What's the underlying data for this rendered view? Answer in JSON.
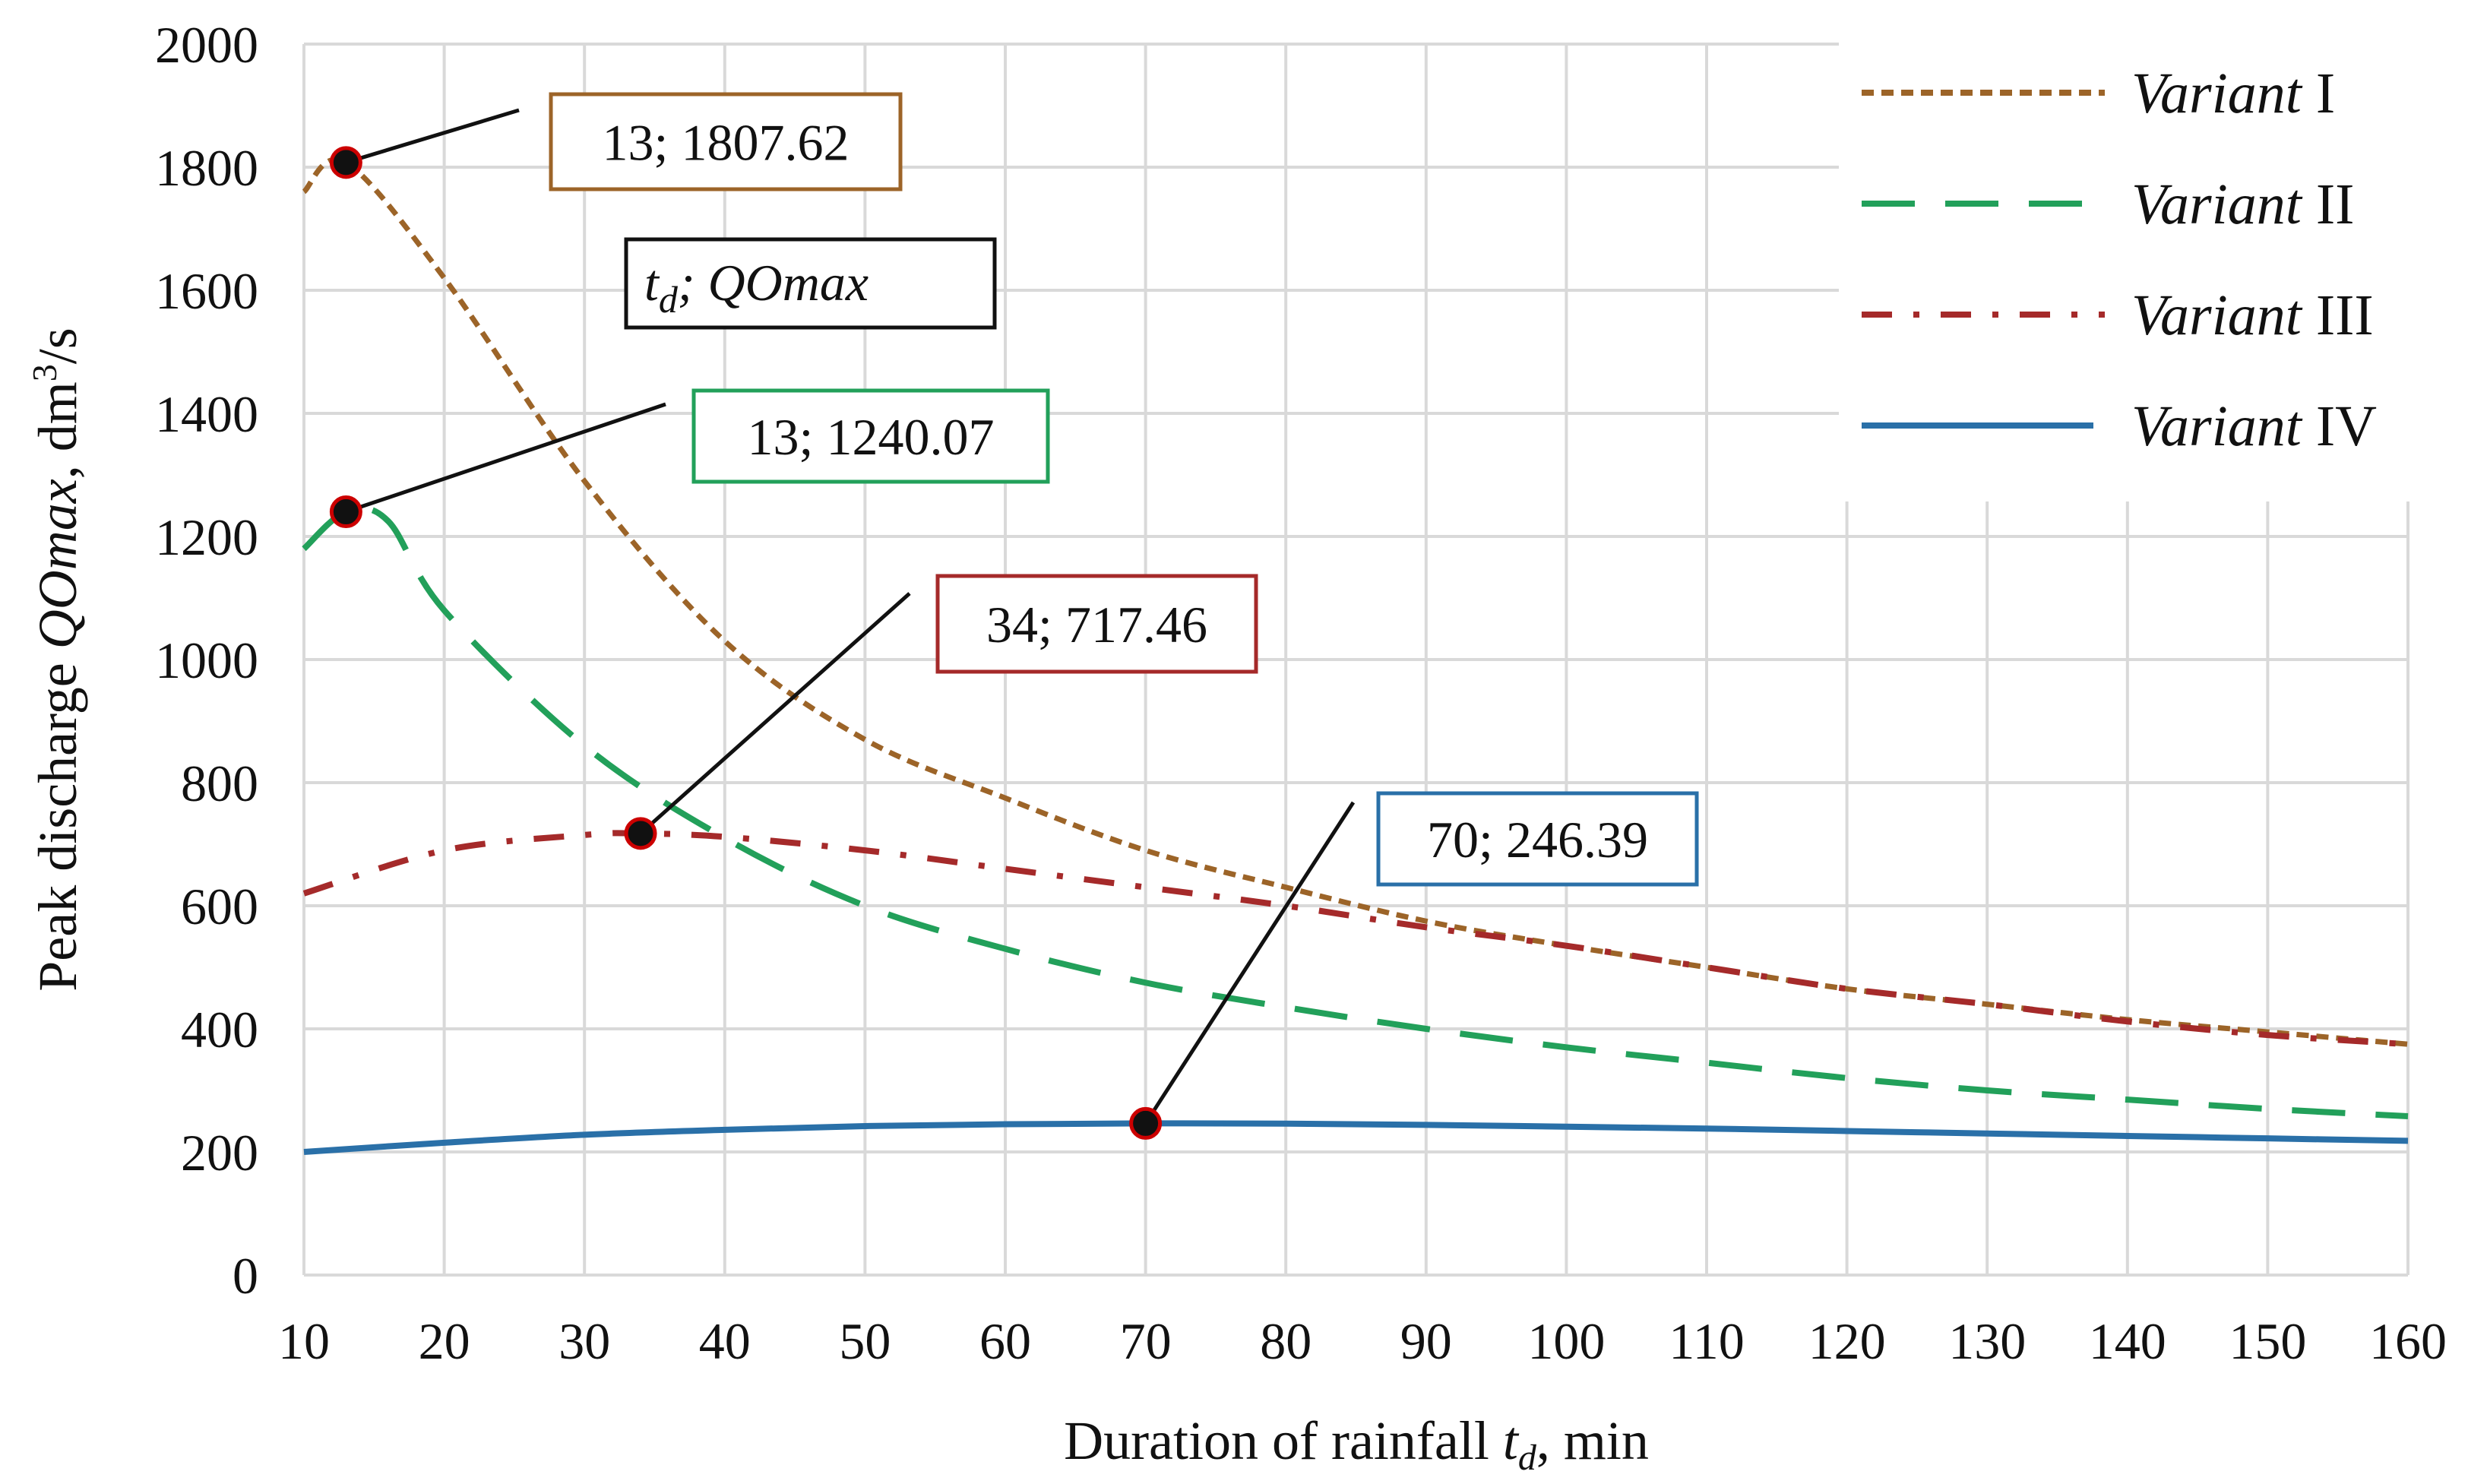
{
  "chart_data": {
    "type": "line",
    "title": "",
    "xlabel": "Duration of rainfall t_d, min",
    "xlabel_parts": {
      "main": "Duration of rainfall ",
      "var": "t",
      "sub": "d",
      "unit": ", min"
    },
    "ylabel_parts": {
      "main": "Peak discharge ",
      "var": "QOmax",
      "unit": ", dm",
      "sup": "3",
      "tail": "/s"
    },
    "xlim": [
      10,
      160
    ],
    "ylim": [
      0,
      2000
    ],
    "xticks": [
      10,
      20,
      30,
      40,
      50,
      60,
      70,
      80,
      90,
      100,
      110,
      120,
      130,
      140,
      150,
      160
    ],
    "yticks": [
      0,
      200,
      400,
      600,
      800,
      1000,
      1200,
      1400,
      1600,
      1800,
      2000
    ],
    "grid": true,
    "legend_position": "top-right",
    "series": [
      {
        "name": "Variant I",
        "name_italic": "Variant",
        "name_roman": "I",
        "color": "#9c6428",
        "dash": "dot",
        "x": [
          10,
          13,
          20,
          30,
          40,
          50,
          60,
          70,
          80,
          90,
          100,
          110,
          120,
          130,
          140,
          150,
          160
        ],
        "y": [
          1760,
          1807.62,
          1620,
          1290,
          1030,
          870,
          775,
          690,
          630,
          575,
          535,
          500,
          465,
          440,
          415,
          395,
          375
        ]
      },
      {
        "name": "Variant II",
        "name_italic": "Variant",
        "name_roman": "II",
        "color": "#22a05a",
        "dash": "long",
        "x": [
          10,
          13,
          16,
          20,
          30,
          40,
          50,
          60,
          70,
          80,
          90,
          100,
          110,
          120,
          130,
          140,
          150,
          160
        ],
        "y": [
          1180,
          1240.07,
          1225,
          1080,
          860,
          710,
          600,
          530,
          475,
          435,
          400,
          370,
          345,
          320,
          300,
          285,
          270,
          258
        ]
      },
      {
        "name": "Variant III",
        "name_italic": "Variant",
        "name_roman": "III",
        "color": "#a52a2a",
        "dash": "dashdot",
        "x": [
          10,
          20,
          30,
          34,
          40,
          50,
          60,
          70,
          80,
          90,
          100,
          110,
          120,
          130,
          140,
          150,
          160
        ],
        "y": [
          620,
          690,
          715,
          717.46,
          712,
          690,
          660,
          630,
          600,
          565,
          535,
          500,
          465,
          440,
          412,
          390,
          375
        ]
      },
      {
        "name": "Variant IV",
        "name_italic": "Variant",
        "name_roman": "IV",
        "color": "#2a70a8",
        "dash": "solid",
        "x": [
          10,
          20,
          30,
          40,
          50,
          60,
          70,
          80,
          90,
          100,
          110,
          120,
          130,
          140,
          150,
          160
        ],
        "y": [
          200,
          215,
          228,
          236,
          242,
          245,
          246.39,
          246,
          244,
          241,
          238,
          234,
          230,
          226,
          222,
          218
        ]
      }
    ],
    "annotations": [
      {
        "x": 13,
        "y": 1807.62,
        "label": "13; 1807.62",
        "color": "#9c6428"
      },
      {
        "x": 13,
        "y": 1240.07,
        "label": "13; 1240.07",
        "color": "#22a05a"
      },
      {
        "x": 34,
        "y": 717.46,
        "label": "34; 717.46",
        "color": "#a52a2a"
      },
      {
        "x": 70,
        "y": 246.39,
        "label": "70; 246.39",
        "color": "#2a70a8"
      }
    ],
    "key_box": {
      "var": "t",
      "sub": "d",
      "rest": "; QOmax"
    }
  }
}
